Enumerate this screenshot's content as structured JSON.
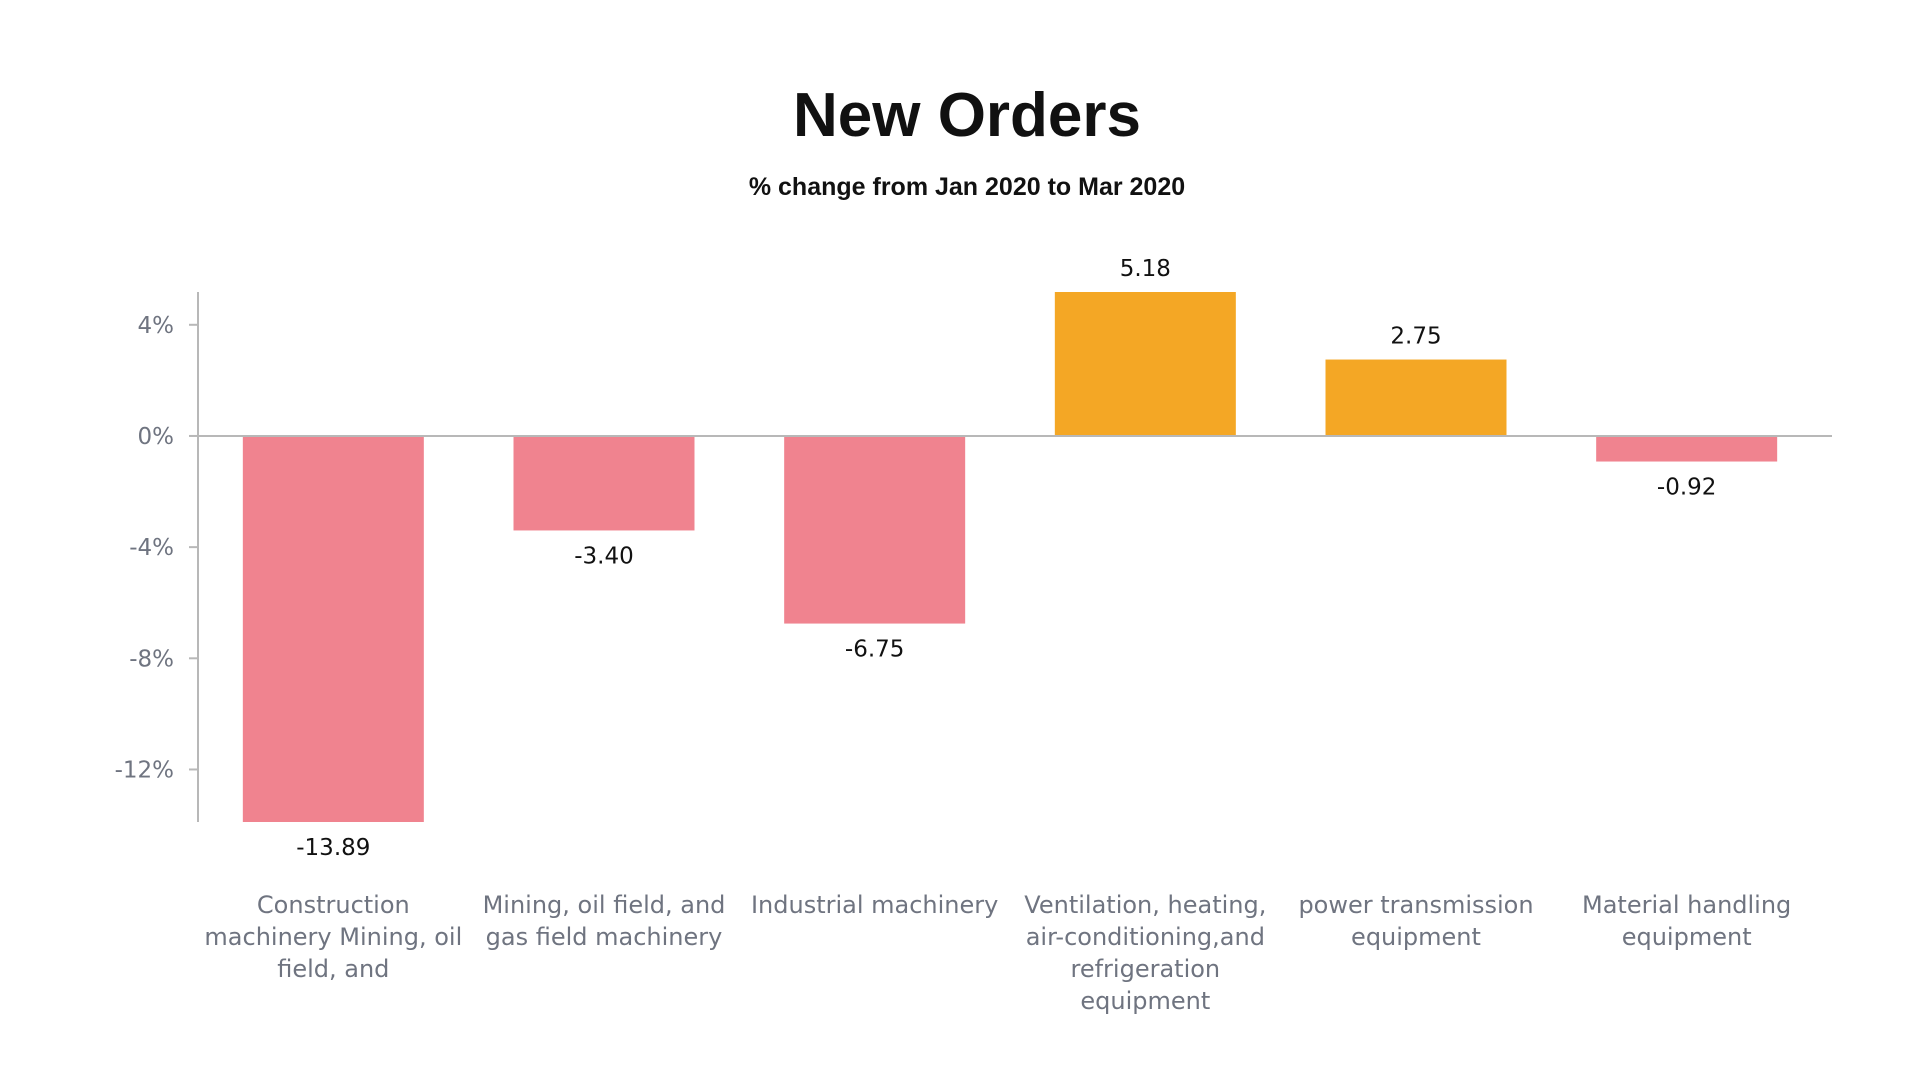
{
  "chart_data": {
    "type": "bar",
    "title": "New Orders",
    "subtitle": "% change from Jan 2020 to Mar 2020",
    "categories": [
      [
        "Construction",
        "machinery Mining, oil",
        "field, and"
      ],
      [
        "Mining, oil field, and",
        "gas field machinery"
      ],
      [
        "Industrial machinery"
      ],
      [
        "Ventilation, heating,",
        "air-conditioning,and",
        "refrigeration",
        "equipment"
      ],
      [
        "power transmission",
        "equipment"
      ],
      [
        "Material handling",
        "equipment"
      ]
    ],
    "values": [
      -13.89,
      -3.4,
      -6.75,
      5.18,
      2.75,
      -0.92
    ],
    "value_labels": [
      "-13.89",
      "-3.40",
      "-6.75",
      "5.18",
      "2.75",
      "-0.92"
    ],
    "y_ticks": [
      4,
      0,
      -4,
      -8,
      -12
    ],
    "y_tick_labels": [
      "4%",
      "0%",
      "-4%",
      "-8%",
      "-12%"
    ],
    "ylim": [
      -13.89,
      5.18
    ],
    "grid": false,
    "legend": "none",
    "colors": {
      "negative": "#f0838f",
      "positive": "#f4a725",
      "axis": "#b8b8b8"
    }
  }
}
